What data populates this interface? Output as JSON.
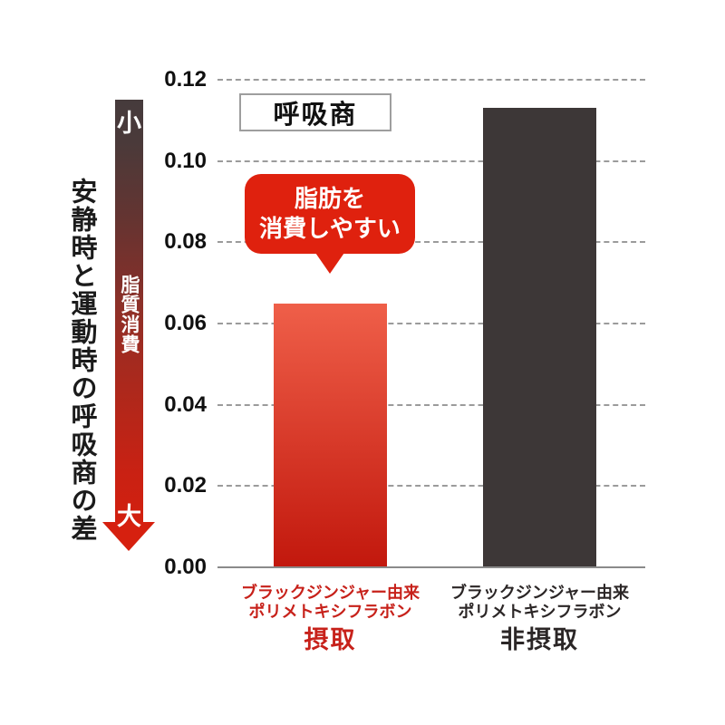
{
  "figure": {
    "left_caption": "安静時と運動時の呼吸商の差",
    "arrow": {
      "top_label": "小",
      "shaft_label": "脂質消費",
      "bottom_label": "大",
      "color_top": "#463b3c",
      "color_bottom": "#d6200f"
    },
    "title_box": "呼吸商",
    "annotation": {
      "line1": "脂肪を",
      "line2": "消費しやすい",
      "bg_color": "#df210e",
      "text_color": "#ffffff"
    }
  },
  "chart_data": {
    "type": "bar",
    "title": "呼吸商",
    "ylabel": "",
    "xlabel": "",
    "ylim": [
      0,
      0.12
    ],
    "ytick_labels": [
      "0.00",
      "0.02",
      "0.04",
      "0.06",
      "0.08",
      "0.10",
      "0.12"
    ],
    "grid": "horizontal-dashed",
    "legend": "none",
    "annotation": "脂肪を消費しやすい",
    "categories": [
      "ブラックジンジャー由来ポリメトキシフラボン 摂取",
      "ブラックジンジャー由来ポリメトキシフラボン 非摂取"
    ],
    "values": [
      0.065,
      0.113
    ],
    "bars": [
      {
        "label_line1": "ブラックジンジャー由来",
        "label_line2": "ポリメトキシフラボン",
        "label_emphasis": "摂取",
        "value": 0.065,
        "bar_color_top": "#ef5f49",
        "bar_color_bottom": "#c2180d",
        "label_color": "#c7211a"
      },
      {
        "label_line1": "ブラックジンジャー由来",
        "label_line2": "ポリメトキシフラボン",
        "label_emphasis": "非摂取",
        "value": 0.113,
        "bar_color_top": "#3d3737",
        "bar_color_bottom": "#3d3737",
        "label_color": "#2b2626"
      }
    ]
  }
}
